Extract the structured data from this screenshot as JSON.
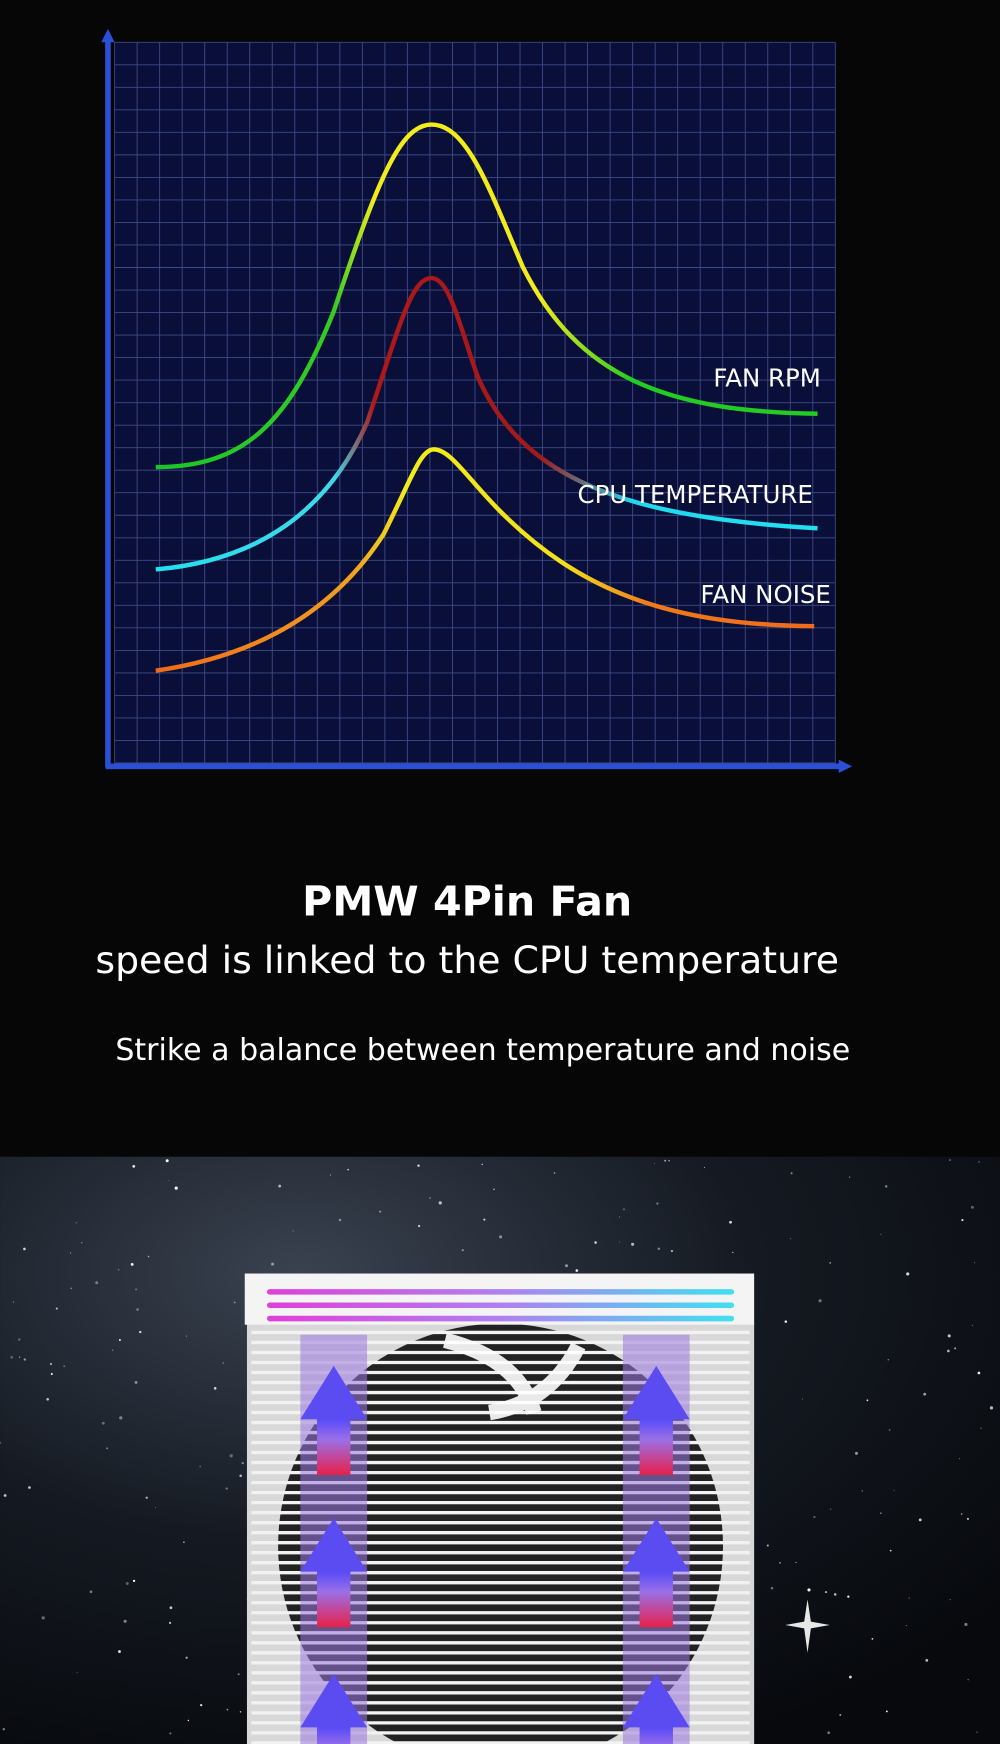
{
  "chart": {
    "labels": [
      "FAN RPM",
      "CPU TEMPERATURE",
      "FAN NOISE"
    ]
  },
  "heading": "PMW 4Pin Fan",
  "subheading": "speed is linked to the CPU temperature",
  "tagline": "Strike a balance between temperature and noise"
}
